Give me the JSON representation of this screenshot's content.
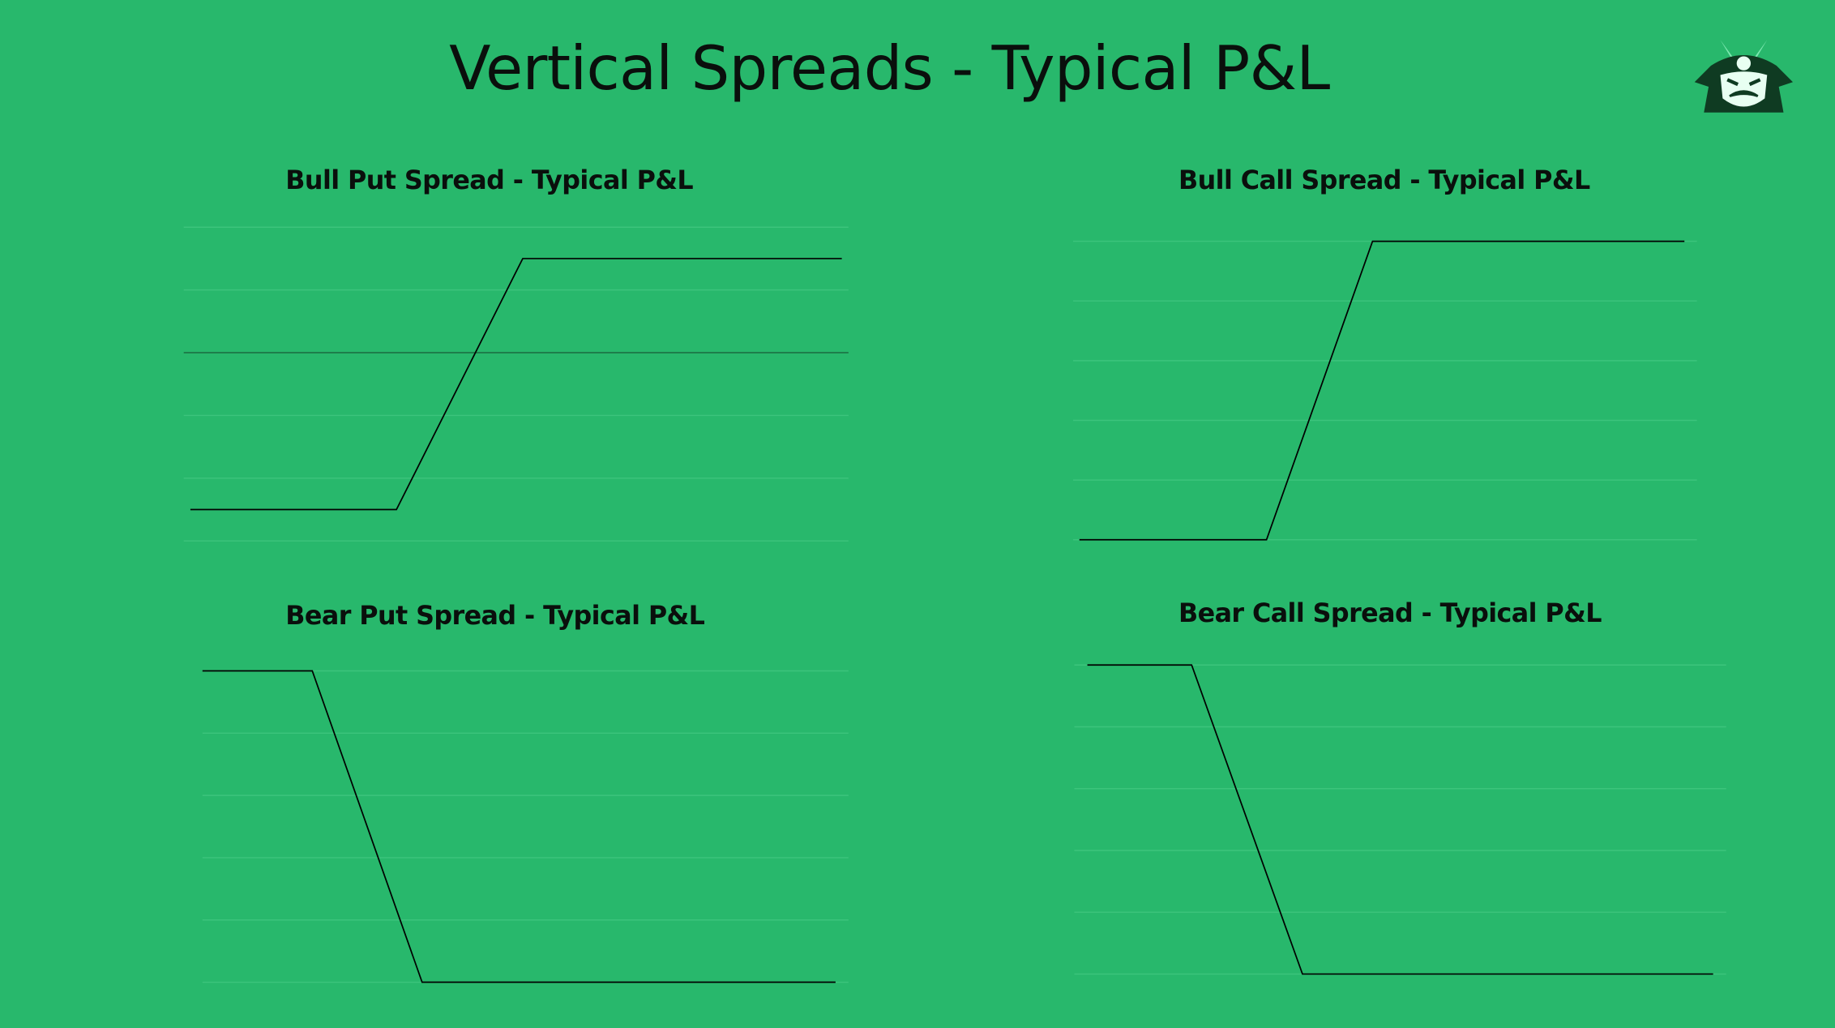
{
  "page": {
    "title": "Vertical Spreads - Typical P&L"
  },
  "chart_data": [
    {
      "type": "line",
      "title": "Bull Put Spread - Typical P&L",
      "x": [
        1,
        32,
        51,
        99
      ],
      "values": [
        -2.5,
        -2.5,
        1.5,
        1.5
      ],
      "color": "#000000",
      "xlim": [
        0,
        100
      ],
      "ylim": [
        -3,
        2
      ],
      "yticks": [
        -3,
        -2,
        -1,
        0,
        1,
        2
      ],
      "grid": true
    },
    {
      "type": "line",
      "title": "Bull Call Spread - Typical P&L",
      "x": [
        1,
        31,
        48,
        98
      ],
      "values": [
        0,
        0,
        5,
        5
      ],
      "color": "#000000",
      "xlim": [
        0,
        100
      ],
      "ylim": [
        0,
        5
      ],
      "yticks": [
        0,
        1,
        2,
        3,
        4,
        5
      ],
      "grid": true
    },
    {
      "type": "line",
      "title": "Bear Put Spread - Typical P&L",
      "x": [
        0,
        17,
        34,
        98
      ],
      "values": [
        5,
        5,
        0,
        0
      ],
      "color": "#000000",
      "xlim": [
        0,
        100
      ],
      "ylim": [
        0,
        5
      ],
      "yticks": [
        0,
        1,
        2,
        3,
        4,
        5
      ],
      "grid": true
    },
    {
      "type": "line",
      "title": "Bear Call Spread - Typical P&L",
      "x": [
        2,
        18,
        35,
        98
      ],
      "values": [
        5,
        5,
        0,
        0
      ],
      "color": "#000000",
      "xlim": [
        0,
        100
      ],
      "ylim": [
        0,
        5
      ],
      "yticks": [
        0,
        1,
        2,
        3,
        4,
        5
      ],
      "grid": true
    }
  ]
}
